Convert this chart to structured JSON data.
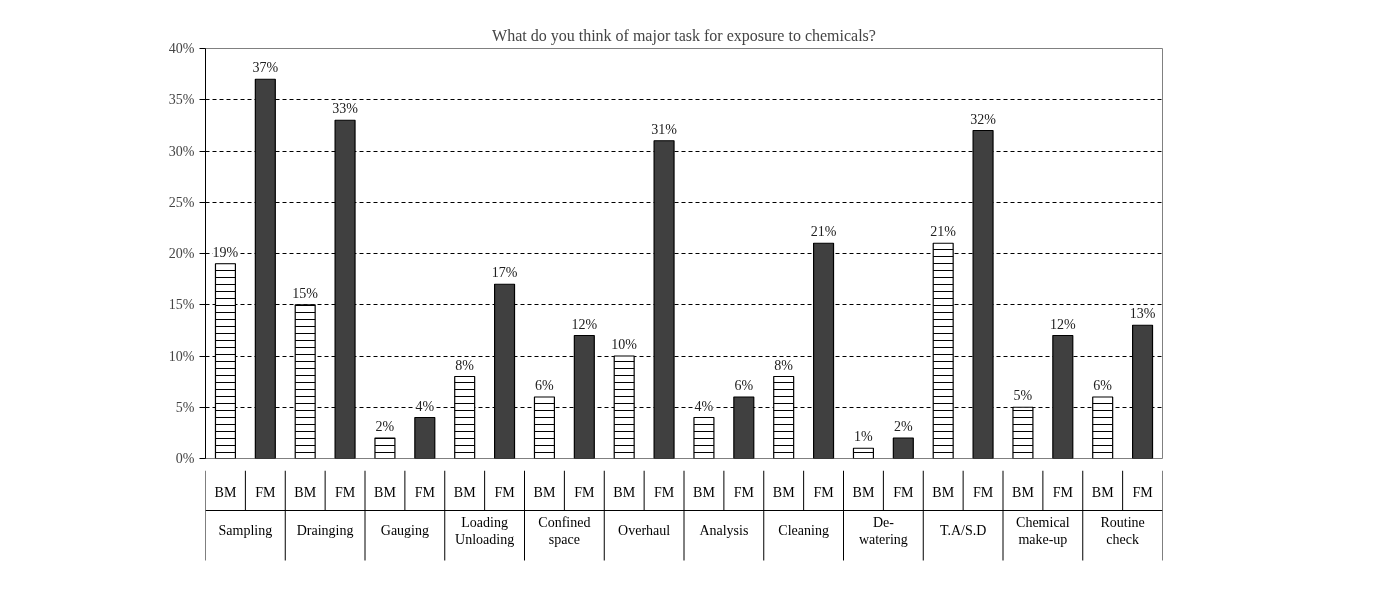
{
  "chart_data": {
    "type": "bar",
    "title": "What do you think of major task for exposure to chemicals?",
    "categories": [
      "Sampling",
      "Drainging",
      "Gauging",
      "Loading Unloading",
      "Confined space",
      "Overhaul",
      "Analysis",
      "Cleaning",
      "De-watering",
      "T.A/S.D",
      "Chemical make-up",
      "Routine check"
    ],
    "series": [
      {
        "name": "BM",
        "color": "#ffffff",
        "values": [
          19,
          15,
          2,
          8,
          6,
          10,
          4,
          8,
          1,
          21,
          5,
          6
        ],
        "value_labels": [
          "19%",
          "15%",
          "2%",
          "8%",
          "6%",
          "10%",
          "4%",
          "8%",
          "1%",
          "21%",
          "5%",
          "6%"
        ]
      },
      {
        "name": "FM",
        "color": "#404040",
        "values": [
          37,
          33,
          4,
          17,
          12,
          31,
          6,
          21,
          2,
          32,
          12,
          13
        ],
        "value_labels": [
          "37%",
          "33%",
          "4%",
          "17%",
          "12%",
          "31%",
          "6%",
          "21%",
          "2%",
          "32%",
          "12%",
          "13%"
        ]
      }
    ],
    "ylim": [
      0,
      40
    ],
    "yticks": [
      {
        "value": 0,
        "label": "0%"
      },
      {
        "value": 5,
        "label": "5%"
      },
      {
        "value": 10,
        "label": "10%"
      },
      {
        "value": 15,
        "label": "15%"
      },
      {
        "value": 20,
        "label": "20%"
      },
      {
        "value": 25,
        "label": "25%"
      },
      {
        "value": 30,
        "label": "30%"
      },
      {
        "value": 35,
        "label": "35%"
      },
      {
        "value": 40,
        "label": "40%"
      }
    ],
    "grid": "y"
  }
}
